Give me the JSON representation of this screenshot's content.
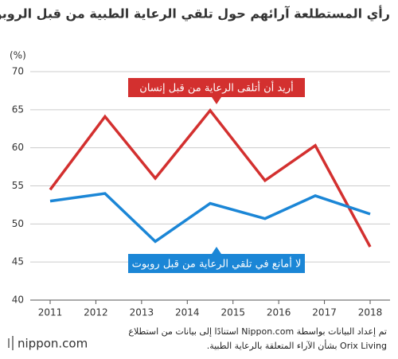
{
  "chart_data": {
    "type": "line",
    "title": "رأي المستطلعة آرائهم حول تلقي الرعاية الطبية من قبل الروبوتات",
    "y_unit": "(%)",
    "xlim": [
      2011,
      2018
    ],
    "xticks": [
      2011,
      2012,
      2013,
      2014,
      2015,
      2016,
      2017,
      2018
    ],
    "x": [
      2011,
      2012.2,
      2013.3,
      2014.5,
      2015.7,
      2016.8,
      2018
    ],
    "ylim": [
      40,
      70
    ],
    "yticks": [
      40,
      45,
      50,
      55,
      60,
      65,
      70
    ],
    "grid": true,
    "series": [
      {
        "name": "أريد أن أتلقى الرعاية من قبل إنسان",
        "color": "#d3302f",
        "values": [
          54.5,
          64.1,
          56.0,
          64.9,
          55.7,
          60.3,
          47.0
        ]
      },
      {
        "name": "لا أمانع في تلقي الرعاية من قبل روبوت",
        "color": "#1b86d6",
        "values": [
          53.0,
          54.0,
          47.7,
          52.7,
          50.7,
          53.7,
          51.3
        ]
      }
    ],
    "source": "تم إعداد البيانات بواسطة Nippon.com استنادًا إلى بيانات من استطلاع Orix Living بشأن الآراء المتعلقة بالرعاية الطبية.",
    "logo": "nippon.com"
  }
}
